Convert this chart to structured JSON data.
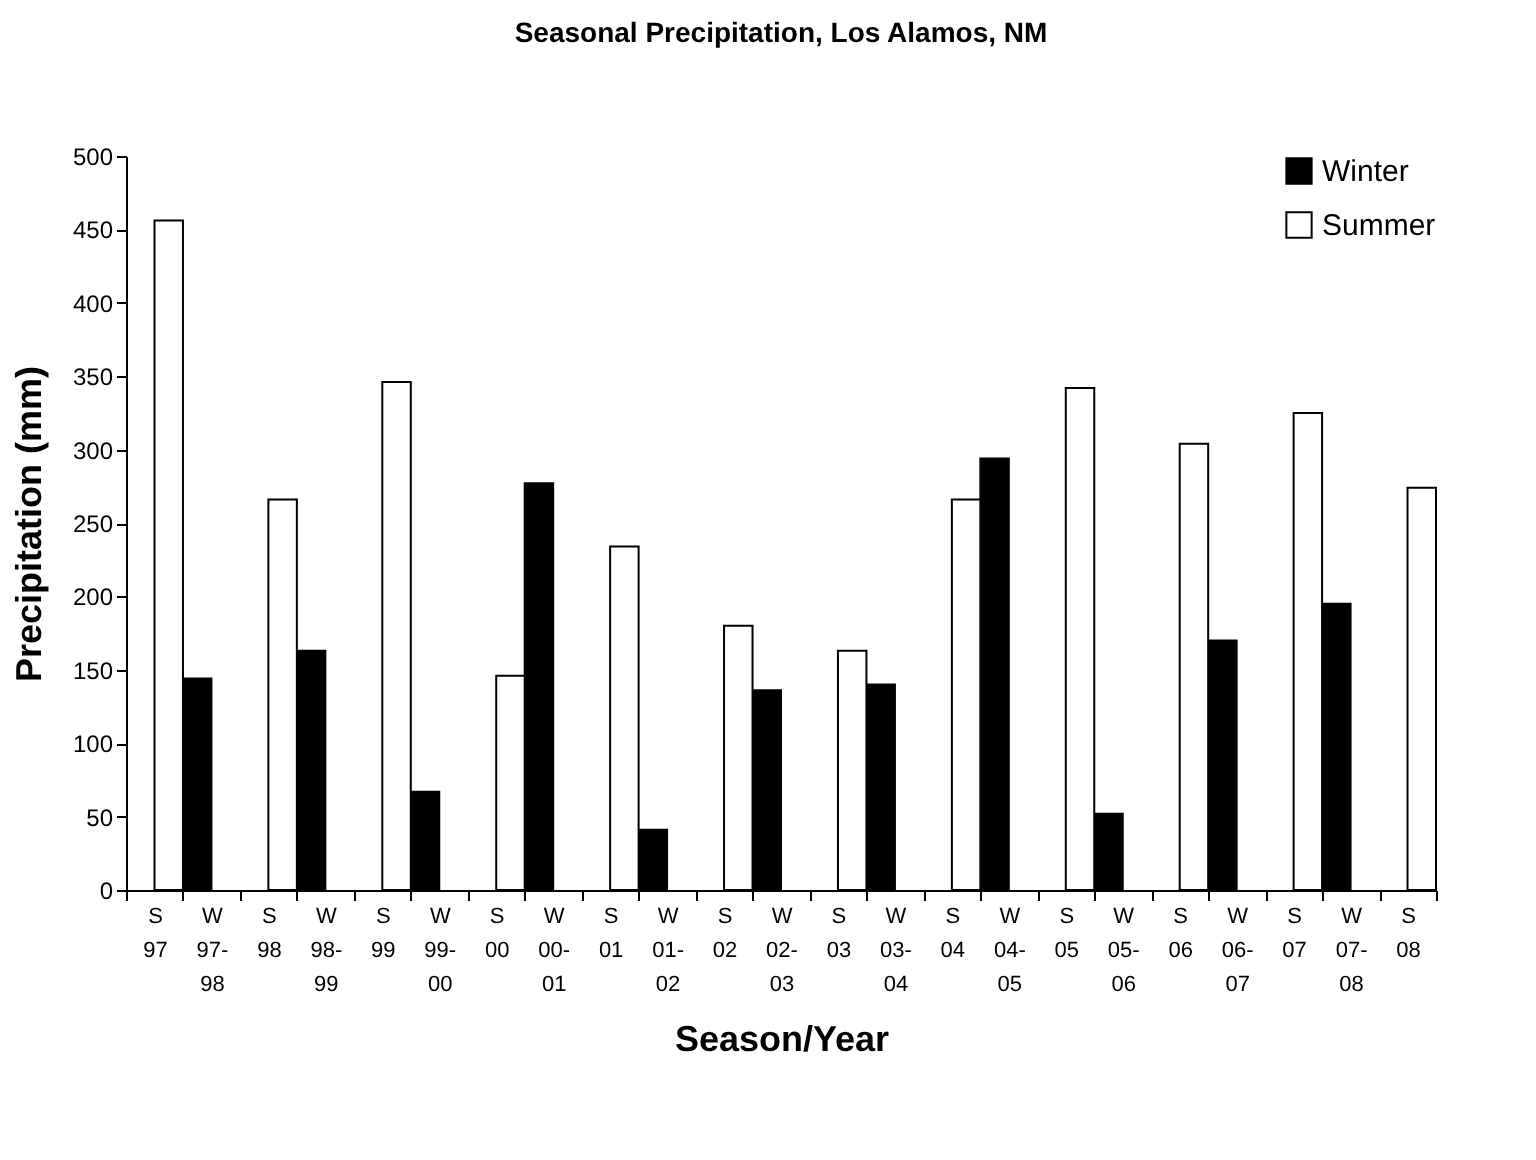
{
  "chart_data": {
    "type": "bar",
    "title": "Seasonal Precipitation, Los Alamos, NM",
    "xlabel": "Season/Year",
    "ylabel": "Precipitation (mm)",
    "categories": [
      "S 97",
      "W 97-98",
      "S 98",
      "W 98-99",
      "S 99",
      "W 99-00",
      "S 00",
      "W 00-01",
      "S 01",
      "W 01-02",
      "S 02",
      "W 02-03",
      "S 03",
      "W 03-04",
      "S 04",
      "W 04-05",
      "S 05",
      "W 05-06",
      "S 06",
      "W 06-07",
      "S 07",
      "W 07-08",
      "S 08"
    ],
    "series": [
      {
        "name": "Winter",
        "color": "#000000",
        "values": [
          null,
          144,
          null,
          163,
          null,
          67,
          null,
          277,
          null,
          41,
          null,
          136,
          null,
          140,
          null,
          294,
          null,
          52,
          null,
          170,
          null,
          195,
          null
        ]
      },
      {
        "name": "Summer",
        "color": "#ffffff",
        "values": [
          456,
          null,
          266,
          null,
          346,
          null,
          146,
          null,
          234,
          null,
          180,
          null,
          163,
          null,
          266,
          null,
          342,
          null,
          304,
          null,
          325,
          null,
          274
        ]
      }
    ],
    "ylim": [
      0,
      500
    ],
    "yticks": [
      0,
      50,
      100,
      150,
      200,
      250,
      300,
      350,
      400,
      450,
      500
    ],
    "grid": false,
    "legend": "top right"
  }
}
